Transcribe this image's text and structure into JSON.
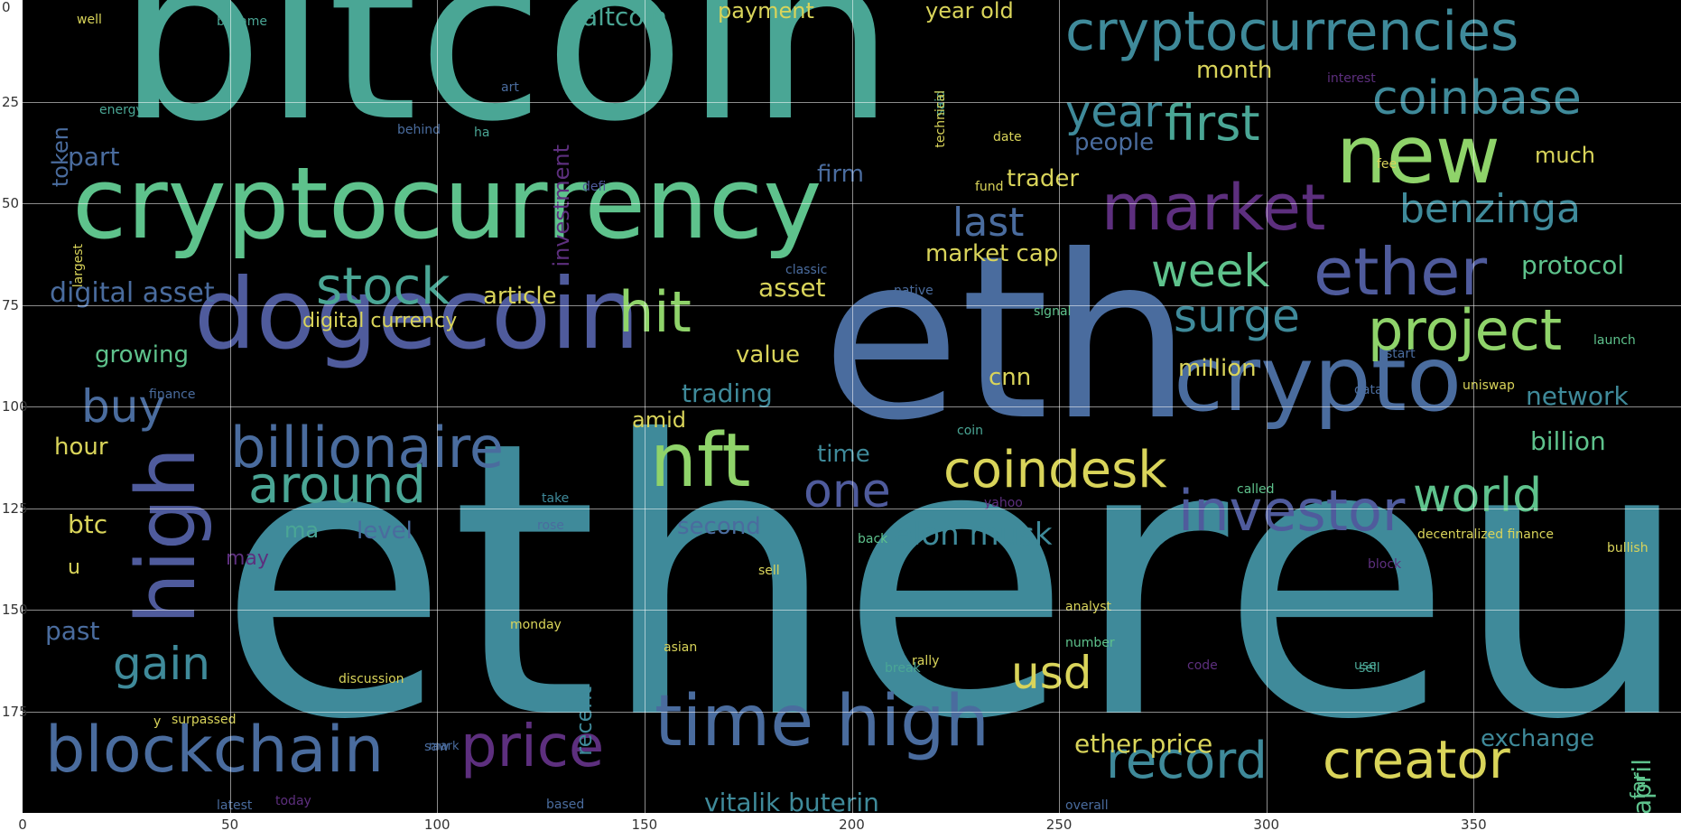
{
  "figure": {
    "x_ticks": [
      "0",
      "50",
      "100",
      "150",
      "200",
      "250",
      "300",
      "350"
    ],
    "y_ticks": [
      "0",
      "25",
      "50",
      "75",
      "100",
      "125",
      "150",
      "175"
    ],
    "x_range": [
      0,
      400
    ],
    "y_range": [
      0,
      200
    ],
    "grid": true,
    "background_color": "#000000"
  },
  "palette": {
    "yellow": "#d9d45a",
    "lime": "#8fd36a",
    "green": "#5ec28c",
    "teal": "#4aa695",
    "cyan": "#3f8a9a",
    "blue": "#4a6c9e",
    "indigo": "#4f5b9c",
    "purple": "#5d2f7e"
  },
  "words": [
    {
      "text": "ethereum",
      "color": "cyan"
    },
    {
      "text": "bitcoin",
      "color": "teal"
    },
    {
      "text": "eth",
      "color": "blue"
    },
    {
      "text": "cryptocurrency",
      "color": "green"
    },
    {
      "text": "dogecoin",
      "color": "indigo"
    },
    {
      "text": "crypto",
      "color": "blue"
    },
    {
      "text": "cryptocurrencies",
      "color": "cyan"
    },
    {
      "text": "new",
      "color": "lime"
    },
    {
      "text": "market",
      "color": "purple"
    },
    {
      "text": "ether",
      "color": "indigo"
    },
    {
      "text": "coinbase",
      "color": "cyan"
    },
    {
      "text": "first",
      "color": "teal"
    },
    {
      "text": "year",
      "color": "cyan"
    },
    {
      "text": "benzinga",
      "color": "cyan"
    },
    {
      "text": "last",
      "color": "blue"
    },
    {
      "text": "stock",
      "color": "teal"
    },
    {
      "text": "nft",
      "color": "lime"
    },
    {
      "text": "hit",
      "color": "lime"
    },
    {
      "text": "project",
      "color": "lime"
    },
    {
      "text": "surge",
      "color": "cyan"
    },
    {
      "text": "week",
      "color": "green"
    },
    {
      "text": "billionaire",
      "color": "blue"
    },
    {
      "text": "around",
      "color": "teal"
    },
    {
      "text": "buy",
      "color": "blue"
    },
    {
      "text": "high",
      "color": "indigo"
    },
    {
      "text": "coindesk",
      "color": "yellow"
    },
    {
      "text": "investor",
      "color": "indigo"
    },
    {
      "text": "world",
      "color": "green"
    },
    {
      "text": "one",
      "color": "indigo"
    },
    {
      "text": "gain",
      "color": "cyan"
    },
    {
      "text": "usd",
      "color": "yellow"
    },
    {
      "text": "blockchain",
      "color": "blue"
    },
    {
      "text": "price",
      "color": "purple"
    },
    {
      "text": "time high",
      "color": "blue"
    },
    {
      "text": "record",
      "color": "cyan"
    },
    {
      "text": "creator",
      "color": "yellow"
    },
    {
      "text": "digital asset",
      "color": "blue"
    },
    {
      "text": "altcoin",
      "color": "teal"
    },
    {
      "text": "payment",
      "color": "yellow"
    },
    {
      "text": "year old",
      "color": "yellow"
    },
    {
      "text": "month",
      "color": "yellow"
    },
    {
      "text": "people",
      "color": "blue"
    },
    {
      "text": "much",
      "color": "yellow"
    },
    {
      "text": "part",
      "color": "blue"
    },
    {
      "text": "token",
      "color": "blue"
    },
    {
      "text": "investment",
      "color": "purple"
    },
    {
      "text": "firm",
      "color": "blue"
    },
    {
      "text": "trader",
      "color": "yellow"
    },
    {
      "text": "market cap",
      "color": "yellow"
    },
    {
      "text": "protocol",
      "color": "green"
    },
    {
      "text": "article",
      "color": "yellow"
    },
    {
      "text": "asset",
      "color": "yellow"
    },
    {
      "text": "digital currency",
      "color": "yellow"
    },
    {
      "text": "growing",
      "color": "green"
    },
    {
      "text": "value",
      "color": "yellow"
    },
    {
      "text": "million",
      "color": "yellow"
    },
    {
      "text": "cnn",
      "color": "yellow"
    },
    {
      "text": "trading",
      "color": "cyan"
    },
    {
      "text": "network",
      "color": "cyan"
    },
    {
      "text": "billion",
      "color": "green"
    },
    {
      "text": "hour",
      "color": "yellow"
    },
    {
      "text": "amid",
      "color": "yellow"
    },
    {
      "text": "time",
      "color": "cyan"
    },
    {
      "text": "btc",
      "color": "yellow"
    },
    {
      "text": "level",
      "color": "blue"
    },
    {
      "text": "second",
      "color": "blue"
    },
    {
      "text": "elon musk",
      "color": "cyan"
    },
    {
      "text": "may",
      "color": "purple"
    },
    {
      "text": "past",
      "color": "blue"
    },
    {
      "text": "recent",
      "color": "cyan"
    },
    {
      "text": "year april",
      "color": "green"
    },
    {
      "text": "far",
      "color": "green"
    },
    {
      "text": "exchange",
      "color": "cyan"
    },
    {
      "text": "ether price",
      "color": "yellow"
    },
    {
      "text": "vitalik buterin",
      "color": "cyan"
    },
    {
      "text": "decentralized finance",
      "color": "yellow"
    },
    {
      "text": "bullish",
      "color": "yellow"
    },
    {
      "text": "discussion",
      "color": "yellow"
    },
    {
      "text": "surpassed",
      "color": "yellow"
    },
    {
      "text": "monday",
      "color": "yellow"
    },
    {
      "text": "asian",
      "color": "yellow"
    },
    {
      "text": "rally",
      "color": "yellow"
    },
    {
      "text": "analyst",
      "color": "yellow"
    },
    {
      "text": "number",
      "color": "green"
    },
    {
      "text": "well",
      "color": "yellow"
    },
    {
      "text": "became",
      "color": "teal"
    },
    {
      "text": "energy",
      "color": "teal"
    },
    {
      "text": "behind",
      "color": "blue"
    },
    {
      "text": "date",
      "color": "yellow"
    },
    {
      "text": "fund",
      "color": "yellow"
    },
    {
      "text": "largest",
      "color": "yellow"
    },
    {
      "text": "classic",
      "color": "blue"
    },
    {
      "text": "native",
      "color": "blue"
    },
    {
      "text": "signal",
      "color": "green"
    },
    {
      "text": "launch",
      "color": "green"
    },
    {
      "text": "start",
      "color": "blue"
    },
    {
      "text": "uniswap",
      "color": "yellow"
    },
    {
      "text": "data",
      "color": "blue"
    },
    {
      "text": "finance",
      "color": "blue"
    },
    {
      "text": "called",
      "color": "green"
    },
    {
      "text": "yahoo",
      "color": "purple"
    },
    {
      "text": "take",
      "color": "cyan"
    },
    {
      "text": "rose",
      "color": "blue"
    },
    {
      "text": "back",
      "color": "green"
    },
    {
      "text": "block",
      "color": "purple"
    },
    {
      "text": "sell",
      "color": "yellow"
    },
    {
      "text": "break",
      "color": "teal"
    },
    {
      "text": "code",
      "color": "purple"
    },
    {
      "text": "use",
      "color": "teal"
    },
    {
      "text": "latest",
      "color": "blue"
    },
    {
      "text": "today",
      "color": "purple"
    },
    {
      "text": "based",
      "color": "blue"
    },
    {
      "text": "saw",
      "color": "blue"
    },
    {
      "text": "overall",
      "color": "blue"
    },
    {
      "text": "mark",
      "color": "blue"
    },
    {
      "text": "defi",
      "color": "indigo"
    },
    {
      "text": "said",
      "color": "teal"
    },
    {
      "text": "interest",
      "color": "purple"
    },
    {
      "text": "fee",
      "color": "yellow"
    },
    {
      "text": "technical",
      "color": "yellow"
    },
    {
      "text": "sell",
      "color": "teal"
    },
    {
      "text": "u",
      "color": "yellow"
    },
    {
      "text": "y",
      "color": "yellow"
    },
    {
      "text": "coin",
      "color": "teal"
    },
    {
      "text": "art",
      "color": "blue"
    },
    {
      "text": "ha",
      "color": "teal"
    },
    {
      "text": "ma",
      "color": "teal"
    }
  ]
}
